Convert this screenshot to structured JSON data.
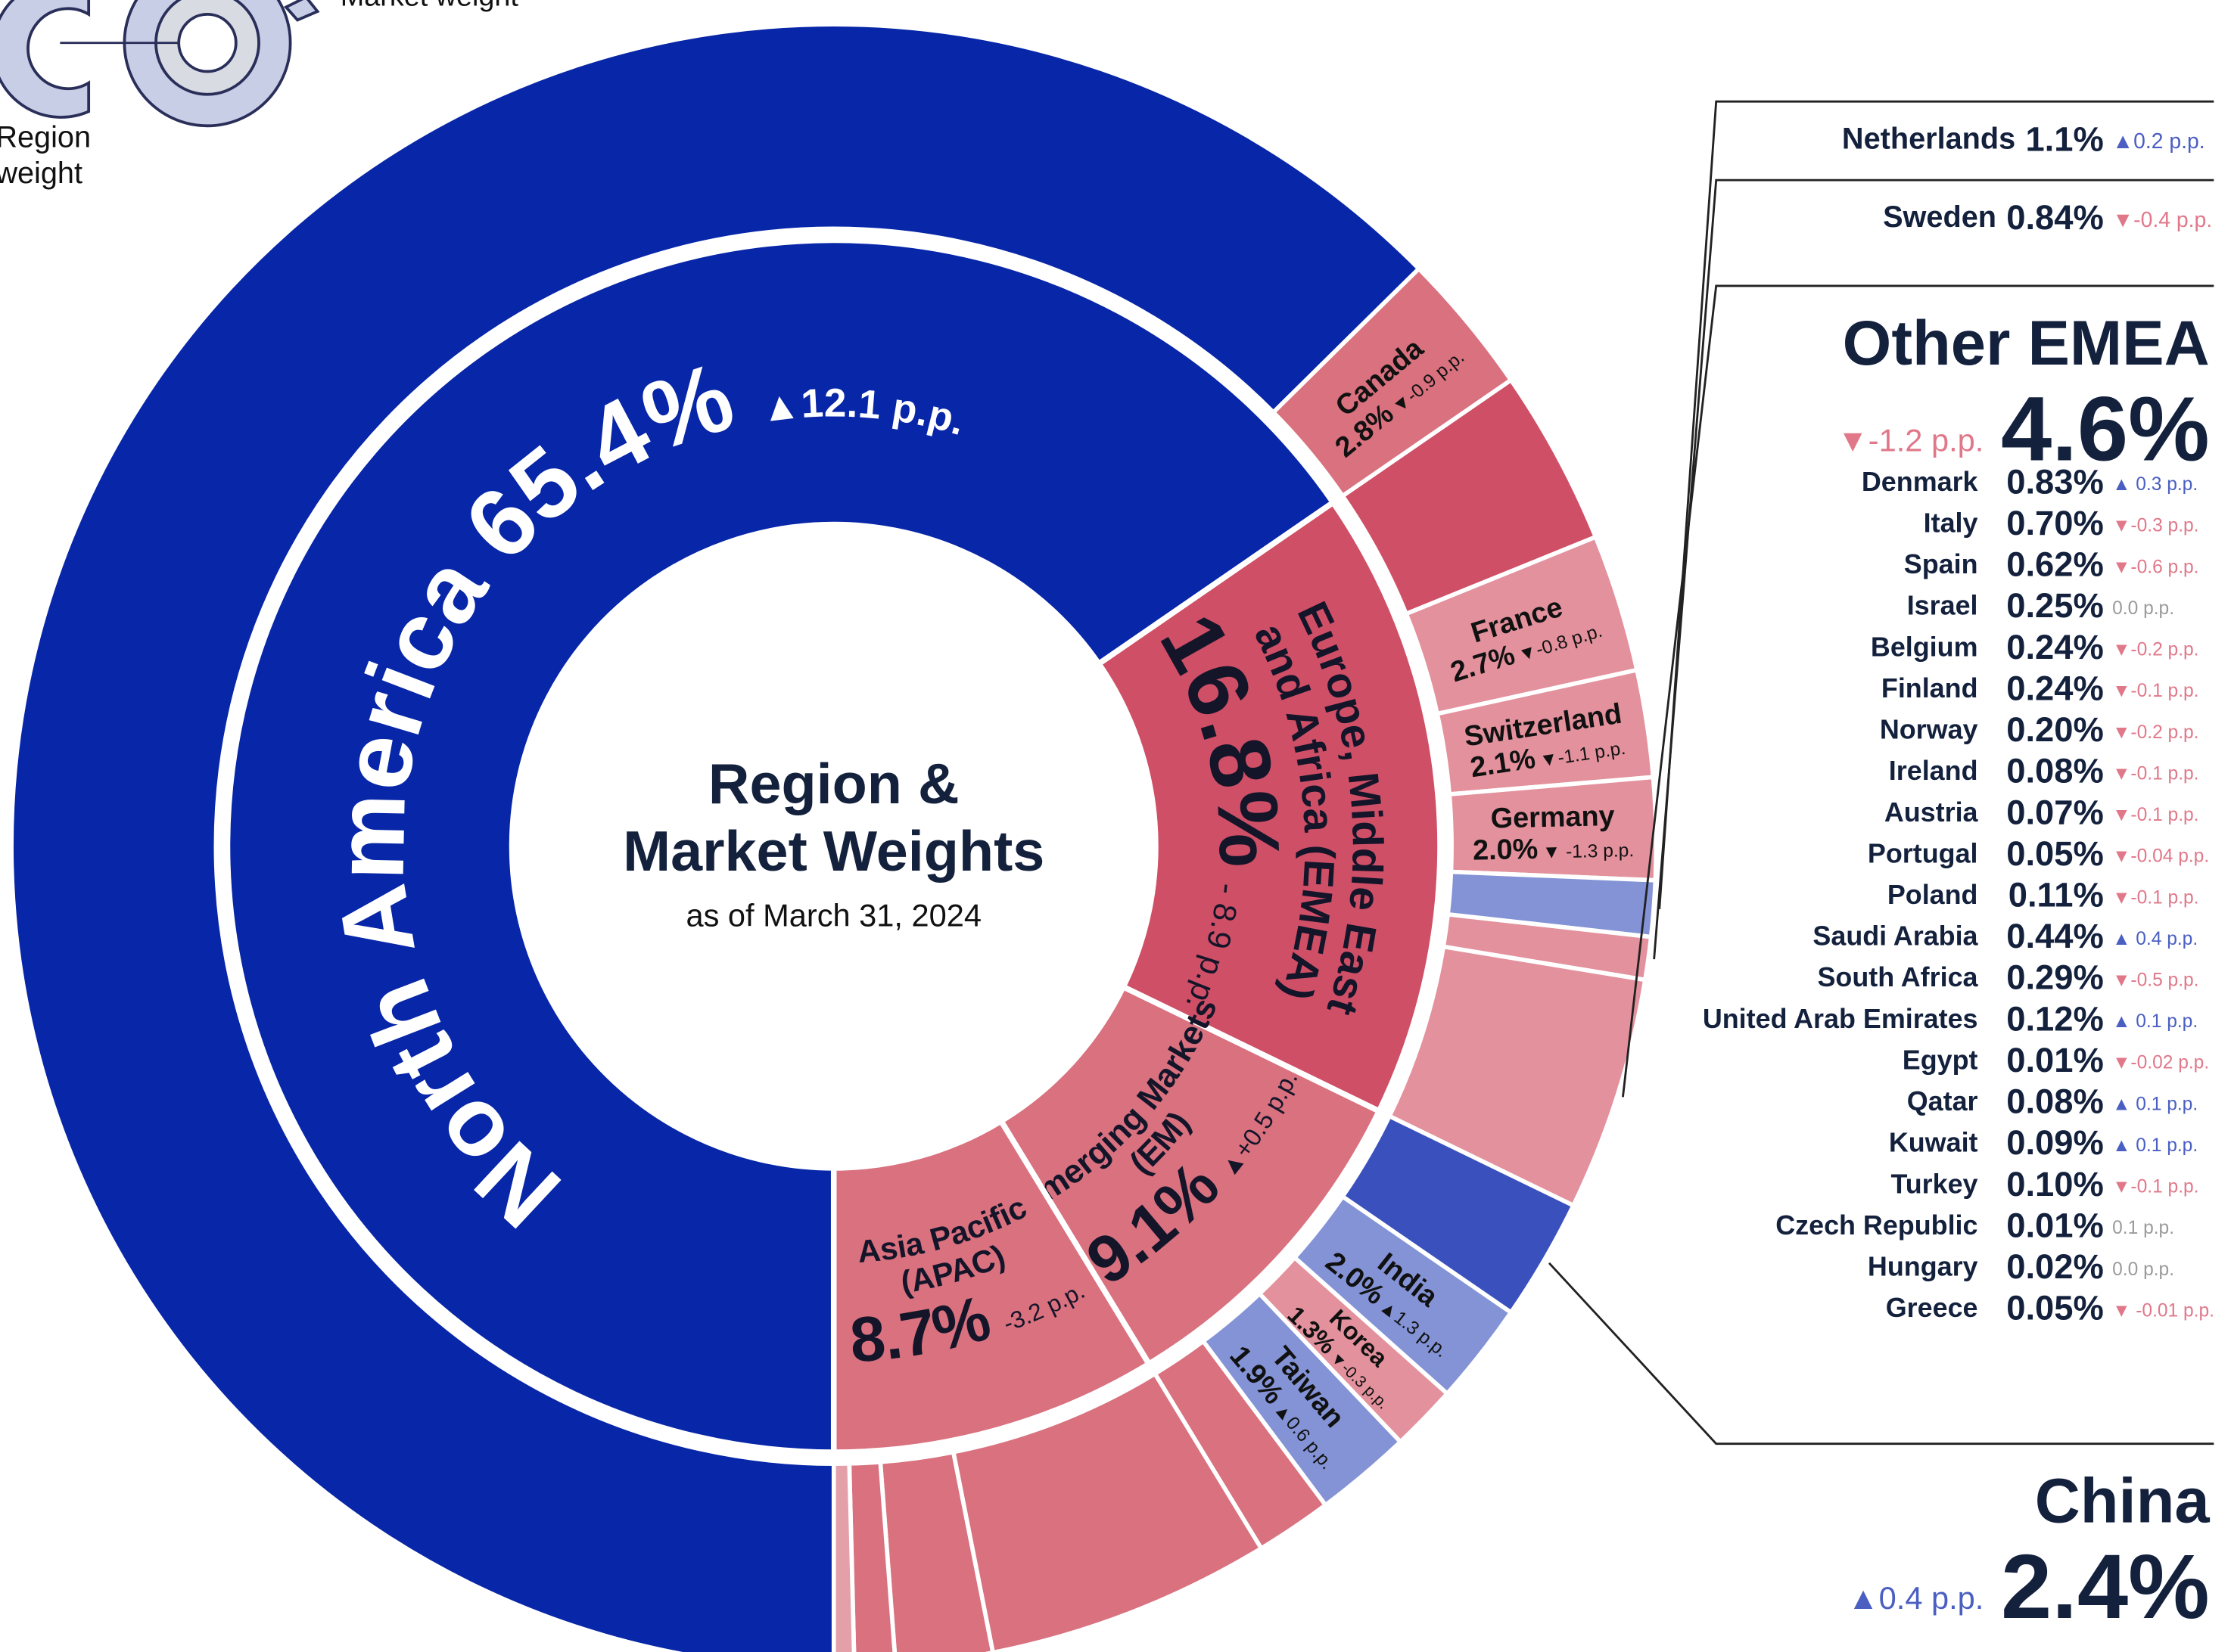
{
  "chart_data": {
    "type": "sunburst",
    "title": [
      "Region &",
      "Market Weights"
    ],
    "subtitle": "as of March 31, 2024",
    "legend": {
      "market": "Market weight",
      "region": [
        "Region",
        "weight"
      ]
    },
    "regions": [
      {
        "name": [
          "Europe, Middle East",
          "and Africa (EMEA)"
        ],
        "value": 16.8,
        "value_label": "16.8%",
        "change": "- 8.9 p.p.",
        "color": "#cf4f66",
        "markets": [
          {
            "name": null,
            "value": 3.46,
            "color": "#cf4f66"
          },
          {
            "name": "France",
            "value": 2.7,
            "value_label": "2.7%",
            "change": "▼-0.8 p.p.",
            "color": "#e3919d"
          },
          {
            "name": "Switzerland",
            "value": 2.1,
            "value_label": "2.1%",
            "change": "▼-1.1 p.p.",
            "color": "#e3919d"
          },
          {
            "name": "Germany",
            "value": 2.0,
            "value_label": "2.0%",
            "change": "▼ -1.3 p.p.",
            "color": "#e3919d"
          },
          {
            "name": "Netherlands",
            "value": 1.1,
            "value_label": "1.1%",
            "change": "▲0.2 p.p.",
            "color": "#8393d6",
            "callout": true
          },
          {
            "name": "Sweden",
            "value": 0.84,
            "value_label": "0.84%",
            "change": "▼-0.4 p.p.",
            "color": "#e3919d",
            "callout": true
          },
          {
            "name": "Other EMEA",
            "value": 4.6,
            "value_label": "4.6%",
            "change": "▼-1.2 p.p.",
            "color": "#e3919d",
            "callout": true,
            "markets": [
              {
                "name": "Denmark",
                "value_label": "0.83%",
                "change": "▲ 0.3 p.p."
              },
              {
                "name": "Italy",
                "value_label": "0.70%",
                "change": "▼-0.3 p.p."
              },
              {
                "name": "Spain",
                "value_label": "0.62%",
                "change": "▼-0.6 p.p."
              },
              {
                "name": "Israel",
                "value_label": "0.25%",
                "change": "0.0 p.p."
              },
              {
                "name": "Belgium",
                "value_label": "0.24%",
                "change": "▼-0.2 p.p."
              },
              {
                "name": "Finland",
                "value_label": "0.24%",
                "change": "▼-0.1 p.p."
              },
              {
                "name": "Norway",
                "value_label": "0.20%",
                "change": "▼-0.2 p.p."
              },
              {
                "name": "Ireland",
                "value_label": "0.08%",
                "change": "▼-0.1 p.p."
              },
              {
                "name": "Austria",
                "value_label": "0.07%",
                "change": "▼-0.1 p.p."
              },
              {
                "name": "Portugal",
                "value_label": "0.05%",
                "change": "▼-0.04 p.p."
              },
              {
                "name": "Poland",
                "value_label": "0.11%",
                "change": "▼-0.1 p.p."
              },
              {
                "name": "Saudi Arabia",
                "value_label": "0.44%",
                "change": "▲ 0.4 p.p."
              },
              {
                "name": "South Africa",
                "value_label": "0.29%",
                "change": "▼-0.5 p.p."
              },
              {
                "name": "United Arab Emirates",
                "value_label": "0.12%",
                "change": "▲ 0.1 p.p."
              },
              {
                "name": "Egypt",
                "value_label": "0.01%",
                "change": "▼-0.02 p.p."
              },
              {
                "name": "Qatar",
                "value_label": "0.08%",
                "change": "▲ 0.1 p.p."
              },
              {
                "name": "Kuwait",
                "value_label": "0.09%",
                "change": "▲ 0.1 p.p."
              },
              {
                "name": "Turkey",
                "value_label": "0.10%",
                "change": "▼-0.1 p.p."
              },
              {
                "name": "Czech Republic",
                "value_label": "0.01%",
                "change": "0.1 p.p."
              },
              {
                "name": "Hungary",
                "value_label": "0.02%",
                "change": "0.0 p.p."
              },
              {
                "name": "Greece",
                "value_label": "0.05%",
                "change": "▼ -0.01 p.p."
              }
            ]
          }
        ]
      },
      {
        "name": [
          "Emerging Markets",
          "(EM)"
        ],
        "value": 9.1,
        "value_label": "9.1%",
        "change": "▲+0.5 p.p.",
        "color": "#d9717f",
        "markets": [
          {
            "name": "China",
            "value": 2.4,
            "value_label": "2.4%",
            "change": "▲0.4 p.p.",
            "color": "#3a51bd",
            "callout": true
          },
          {
            "name": "India",
            "value": 2.0,
            "value_label": "2.0%",
            "change": "▲1.3 p.p.",
            "color": "#8393d6"
          },
          {
            "name": "Korea",
            "value": 1.3,
            "value_label": "1.3%",
            "change": "▼-0.3 p.p.",
            "color": "#e3919d"
          },
          {
            "name": "Taiwan",
            "value": 1.9,
            "value_label": "1.9%",
            "change": "▲0.6 p.p.",
            "color": "#8393d6"
          },
          {
            "name": null,
            "value": 1.5,
            "color": "#d9717f"
          }
        ]
      },
      {
        "name": [
          "Asia Pacific",
          "(APAC)"
        ],
        "value": 8.7,
        "value_label": "8.7%",
        "change": "-3.2 p.p.",
        "color": "#d9717f",
        "markets": [
          {
            "name": null,
            "value": 5.6,
            "color": "#d9717f"
          },
          {
            "name": null,
            "value": 1.9,
            "color": "#d9717f"
          },
          {
            "name": null,
            "value": 0.8,
            "color": "#d9717f"
          },
          {
            "name": null,
            "value": 0.4,
            "color": "#e3a0a8"
          }
        ]
      },
      {
        "name": [
          "North America"
        ],
        "value": 65.4,
        "value_label": "65.4%",
        "change": "▲12.1 p.p.",
        "color": "#0726a8",
        "markets": [
          {
            "name": null,
            "value": 62.6,
            "color": "#0726a8"
          },
          {
            "name": "Canada",
            "value": 2.8,
            "value_label": "2.8%",
            "change": "▼-0.9 p.p.",
            "color": "#d9717f"
          }
        ]
      }
    ]
  }
}
